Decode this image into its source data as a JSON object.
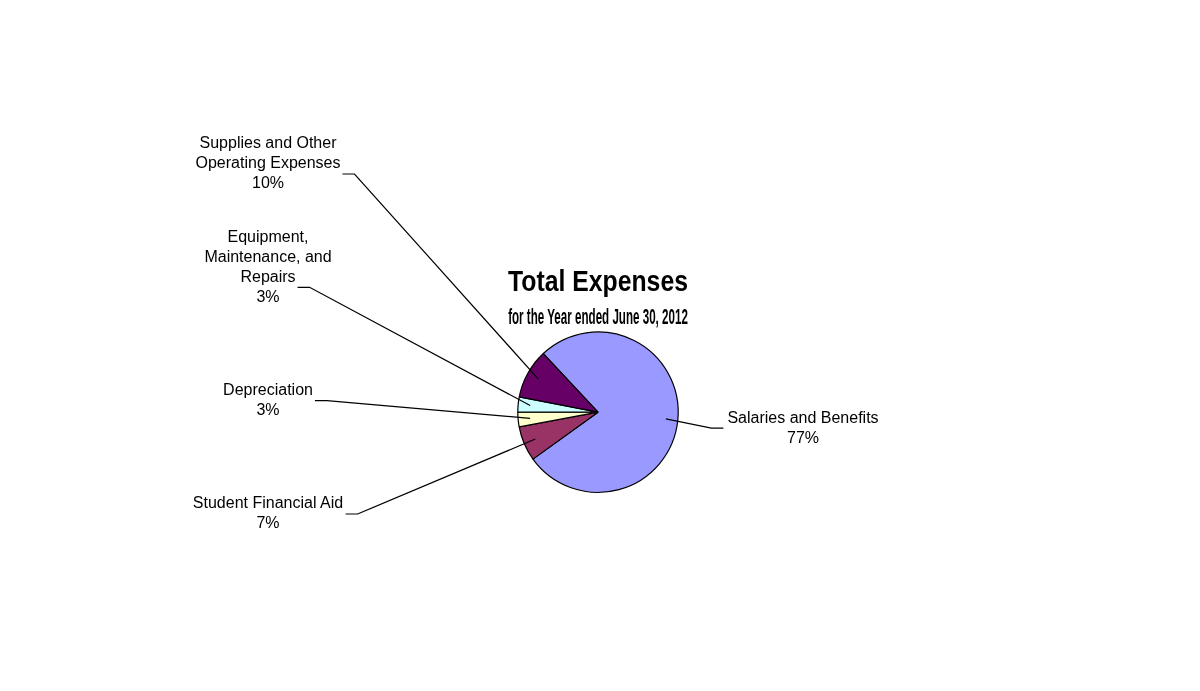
{
  "chart_data": {
    "type": "pie",
    "title": "Total Expenses",
    "subtitle": "for the Year ended June 30, 2012",
    "categories": [
      "Salaries and Benefits",
      "Student Financial Aid",
      "Depreciation",
      "Equipment, Maintenance, and Repairs",
      "Supplies and Other Operating Expenses"
    ],
    "values": [
      77,
      7,
      3,
      3,
      10
    ],
    "value_labels": [
      "77%",
      "7%",
      "3%",
      "3%",
      "10%"
    ],
    "colors": [
      "#9999ff",
      "#993366",
      "#ffffcc",
      "#ccffff",
      "#660066"
    ],
    "legend": false
  }
}
